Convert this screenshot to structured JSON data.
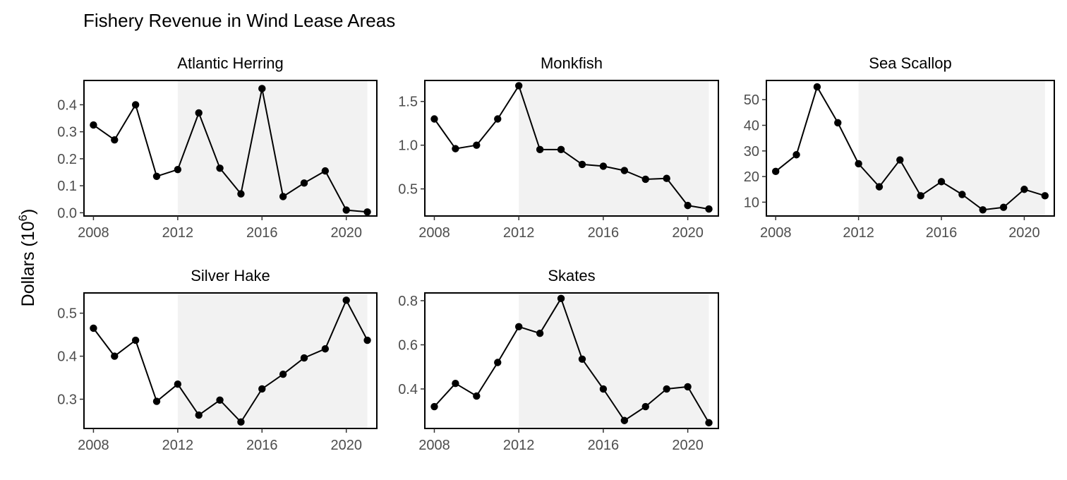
{
  "chart_data": {
    "type": "line",
    "title": "Fishery Revenue in Wind Lease Areas",
    "ylabel": {
      "base": "Dollars (10",
      "exponent": "6",
      "close": ")"
    },
    "xlabel": "",
    "shaded_period": [
      2012,
      2021
    ],
    "grid": false,
    "colors": {
      "line": "#000000",
      "shade": "#f2f2f2",
      "tick_text": "#4d4d4d",
      "axis": "#333333"
    },
    "x_ticks": [
      "2008",
      "2012",
      "2016",
      "2020"
    ],
    "panels": [
      {
        "name": "Atlantic Herring",
        "x": [
          2008,
          2009,
          2010,
          2011,
          2012,
          2013,
          2014,
          2015,
          2016,
          2017,
          2018,
          2019,
          2020,
          2021
        ],
        "values": [
          0.325,
          0.27,
          0.4,
          0.135,
          0.16,
          0.37,
          0.165,
          0.07,
          0.46,
          0.06,
          0.11,
          0.155,
          0.01,
          0.003
        ],
        "ylim": [
          -0.012,
          0.49
        ],
        "y_ticks": [
          {
            "v": 0,
            "label": "0.0"
          },
          {
            "v": 0.1,
            "label": "0.1"
          },
          {
            "v": 0.2,
            "label": "0.2"
          },
          {
            "v": 0.3,
            "label": "0.3"
          },
          {
            "v": 0.4,
            "label": "0.4"
          }
        ]
      },
      {
        "name": "Monkfish",
        "x": [
          2008,
          2009,
          2010,
          2011,
          2012,
          2013,
          2014,
          2015,
          2016,
          2017,
          2018,
          2019,
          2020,
          2021
        ],
        "values": [
          1.3,
          0.96,
          1.0,
          1.3,
          1.68,
          0.95,
          0.95,
          0.78,
          0.76,
          0.71,
          0.61,
          0.62,
          0.31,
          0.27
        ],
        "ylim": [
          0.19,
          1.74
        ],
        "y_ticks": [
          {
            "v": 0.5,
            "label": "0.5"
          },
          {
            "v": 1.0,
            "label": "1.0"
          },
          {
            "v": 1.5,
            "label": "1.5"
          }
        ]
      },
      {
        "name": "Sea Scallop",
        "x": [
          2008,
          2009,
          2010,
          2011,
          2012,
          2013,
          2014,
          2015,
          2016,
          2017,
          2018,
          2019,
          2020,
          2021
        ],
        "values": [
          22.0,
          28.5,
          55.0,
          41.0,
          25.0,
          16.0,
          26.5,
          12.5,
          18.0,
          13.0,
          7.0,
          8.0,
          15.0,
          12.5
        ],
        "ylim": [
          4.6,
          57.5
        ],
        "y_ticks": [
          {
            "v": 10,
            "label": "10"
          },
          {
            "v": 20,
            "label": "20"
          },
          {
            "v": 30,
            "label": "30"
          },
          {
            "v": 40,
            "label": "40"
          },
          {
            "v": 50,
            "label": "50"
          }
        ]
      },
      {
        "name": "Silver Hake",
        "x": [
          2008,
          2009,
          2010,
          2011,
          2012,
          2013,
          2014,
          2015,
          2016,
          2017,
          2018,
          2019,
          2020,
          2021
        ],
        "values": [
          0.465,
          0.4,
          0.437,
          0.295,
          0.335,
          0.263,
          0.298,
          0.247,
          0.324,
          0.358,
          0.396,
          0.417,
          0.53,
          0.437
        ],
        "ylim": [
          0.232,
          0.547
        ],
        "y_ticks": [
          {
            "v": 0.3,
            "label": "0.3"
          },
          {
            "v": 0.4,
            "label": "0.4"
          },
          {
            "v": 0.5,
            "label": "0.5"
          }
        ]
      },
      {
        "name": "Skates",
        "x": [
          2008,
          2009,
          2010,
          2011,
          2012,
          2013,
          2014,
          2015,
          2016,
          2017,
          2018,
          2019,
          2020,
          2021
        ],
        "values": [
          0.32,
          0.425,
          0.368,
          0.52,
          0.682,
          0.652,
          0.81,
          0.535,
          0.4,
          0.257,
          0.32,
          0.4,
          0.41,
          0.247
        ],
        "ylim": [
          0.221,
          0.835
        ],
        "y_ticks": [
          {
            "v": 0.4,
            "label": "0.4"
          },
          {
            "v": 0.6,
            "label": "0.6"
          },
          {
            "v": 0.8,
            "label": "0.8"
          }
        ]
      }
    ]
  }
}
